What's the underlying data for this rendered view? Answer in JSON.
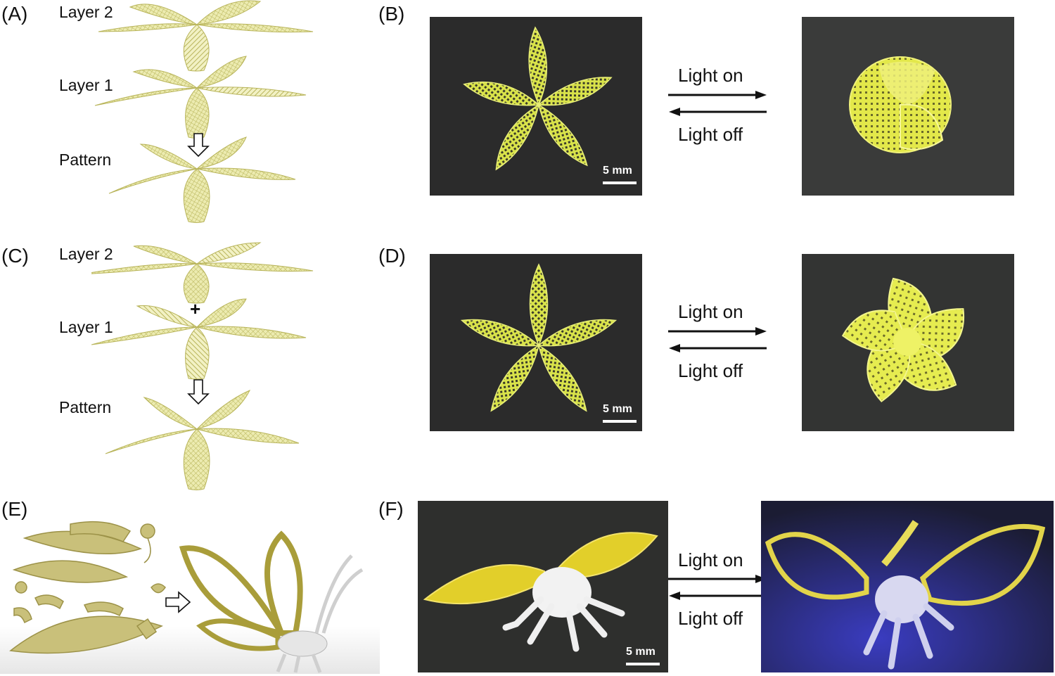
{
  "panels": {
    "a": {
      "letter": "(A)",
      "layer2": "Layer 2",
      "plus": "+",
      "layer1": "Layer 1",
      "pattern": "Pattern"
    },
    "b": {
      "letter": "(B)",
      "light_on": "Light on",
      "light_off": "Light off",
      "scale": "5 mm"
    },
    "c": {
      "letter": "(C)",
      "layer2": "Layer 2",
      "plus": "+",
      "layer1": "Layer 1",
      "pattern": "Pattern"
    },
    "d": {
      "letter": "(D)",
      "light_on": "Light on",
      "light_off": "Light off",
      "scale": "5 mm"
    },
    "e": {
      "letter": "(E)"
    },
    "f": {
      "letter": "(F)",
      "light_on": "Light on",
      "light_off": "Light off",
      "scale": "5 mm"
    }
  },
  "colors": {
    "petal_render": "#e6e59a",
    "petal_print": "#d9e34a",
    "butterfly_render": "#b9b066",
    "photo_bg": "#2b2b2b",
    "uv_bg": "#1b1c33"
  }
}
